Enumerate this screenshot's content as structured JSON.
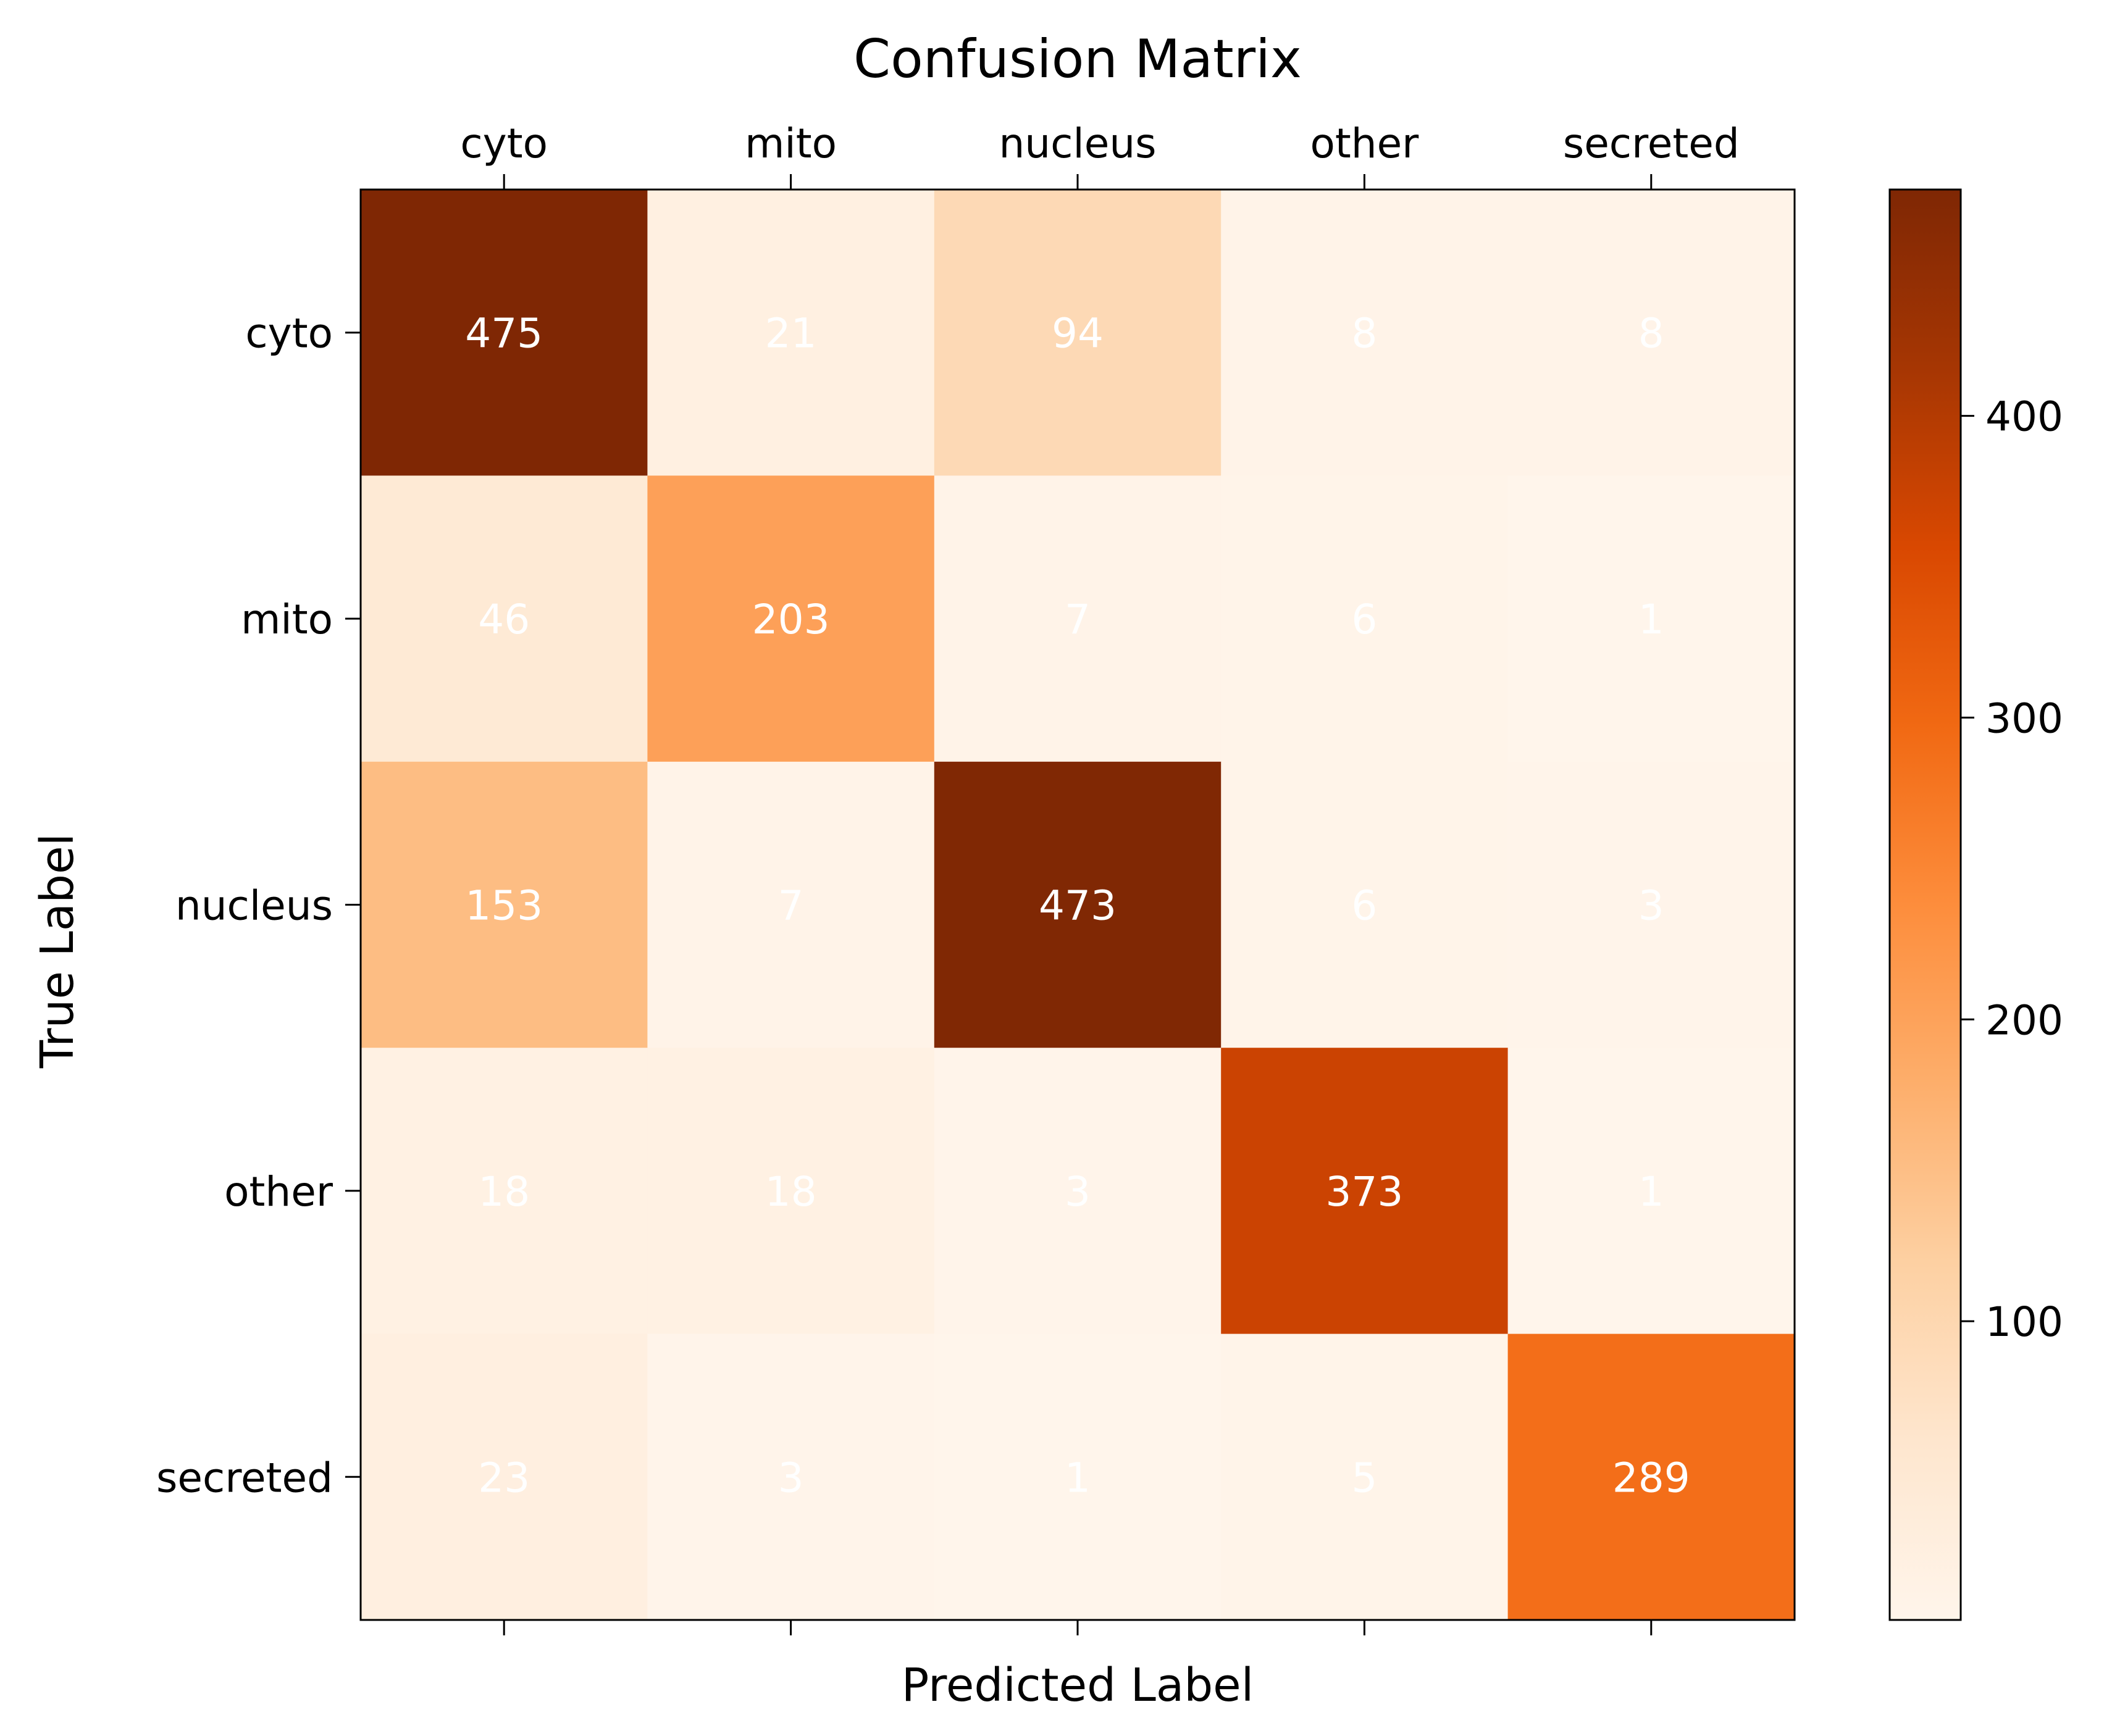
{
  "chart_data": {
    "type": "heatmap",
    "title": "Confusion Matrix",
    "xlabel": "Predicted Label",
    "ylabel": "True Label",
    "x_categories": [
      "cyto",
      "mito",
      "nucleus",
      "other",
      "secreted"
    ],
    "y_categories": [
      "cyto",
      "mito",
      "nucleus",
      "other",
      "secreted"
    ],
    "values": [
      [
        475,
        21,
        94,
        8,
        8
      ],
      [
        46,
        203,
        7,
        6,
        1
      ],
      [
        153,
        7,
        473,
        6,
        3
      ],
      [
        18,
        18,
        3,
        373,
        1
      ],
      [
        23,
        3,
        1,
        5,
        289
      ]
    ],
    "colormap": "Oranges",
    "colorbar": {
      "range": [
        1,
        475
      ],
      "ticks": [
        100,
        200,
        300,
        400
      ],
      "tick_labels": [
        "100",
        "200",
        "300",
        "400"
      ]
    },
    "cell_label_color": "#ffffff",
    "x_tick_position": "top"
  }
}
